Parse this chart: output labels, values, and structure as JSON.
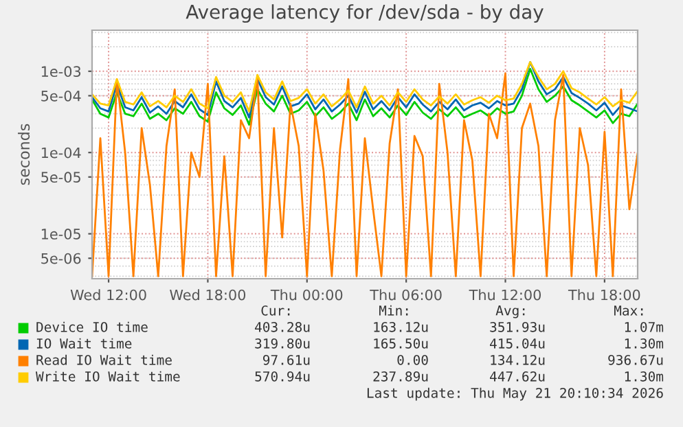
{
  "chart_data": {
    "type": "line",
    "title": "Average latency for /dev/sda - by day",
    "ylabel": "seconds",
    "x": [
      "2026-05-20T11:00",
      "2026-05-20T11:30",
      "2026-05-20T12:00",
      "2026-05-20T12:30",
      "2026-05-20T13:00",
      "2026-05-20T13:30",
      "2026-05-20T14:00",
      "2026-05-20T14:30",
      "2026-05-20T15:00",
      "2026-05-20T15:30",
      "2026-05-20T16:00",
      "2026-05-20T16:30",
      "2026-05-20T17:00",
      "2026-05-20T17:30",
      "2026-05-20T18:00",
      "2026-05-20T18:30",
      "2026-05-20T19:00",
      "2026-05-20T19:30",
      "2026-05-20T20:00",
      "2026-05-20T20:30",
      "2026-05-20T21:00",
      "2026-05-20T21:30",
      "2026-05-20T22:00",
      "2026-05-20T22:30",
      "2026-05-20T23:00",
      "2026-05-20T23:30",
      "2026-05-21T00:00",
      "2026-05-21T00:30",
      "2026-05-21T01:00",
      "2026-05-21T01:30",
      "2026-05-21T02:00",
      "2026-05-21T02:30",
      "2026-05-21T03:00",
      "2026-05-21T03:30",
      "2026-05-21T04:00",
      "2026-05-21T04:30",
      "2026-05-21T05:00",
      "2026-05-21T05:30",
      "2026-05-21T06:00",
      "2026-05-21T06:30",
      "2026-05-21T07:00",
      "2026-05-21T07:30",
      "2026-05-21T08:00",
      "2026-05-21T08:30",
      "2026-05-21T09:00",
      "2026-05-21T09:30",
      "2026-05-21T10:00",
      "2026-05-21T10:30",
      "2026-05-21T11:00",
      "2026-05-21T11:30",
      "2026-05-21T12:00",
      "2026-05-21T12:30",
      "2026-05-21T13:00",
      "2026-05-21T13:30",
      "2026-05-21T14:00",
      "2026-05-21T14:30",
      "2026-05-21T15:00",
      "2026-05-21T15:30",
      "2026-05-21T16:00",
      "2026-05-21T16:30",
      "2026-05-21T17:00",
      "2026-05-21T17:30",
      "2026-05-21T18:00",
      "2026-05-21T18:30",
      "2026-05-21T19:00",
      "2026-05-21T19:30",
      "2026-05-21T20:00"
    ],
    "series": [
      {
        "name": "Device IO time",
        "color": "#00cc00",
        "values": [
          0.00045,
          0.0003,
          0.00027,
          0.00055,
          0.0003,
          0.00028,
          0.0004,
          0.00026,
          0.0003,
          0.00025,
          0.00035,
          0.0003,
          0.00042,
          0.00028,
          0.00024,
          0.00055,
          0.00035,
          0.00029,
          0.00038,
          0.00022,
          0.0006,
          0.0004,
          0.00032,
          0.0005,
          0.0003,
          0.00033,
          0.00042,
          0.00028,
          0.00036,
          0.00026,
          0.00031,
          0.0004,
          0.00025,
          0.00045,
          0.00028,
          0.00035,
          0.00027,
          0.00038,
          0.00029,
          0.00042,
          0.00031,
          0.00026,
          0.00034,
          0.00028,
          0.00036,
          0.00027,
          0.0003,
          0.00033,
          0.00028,
          0.00035,
          0.0003,
          0.00032,
          0.0005,
          0.00107,
          0.0006,
          0.00042,
          0.0005,
          0.00065,
          0.00044,
          0.00038,
          0.00032,
          0.00027,
          0.00033,
          0.00023,
          0.0003,
          0.00028,
          0.0004
        ]
      },
      {
        "name": "IO Wait time",
        "color": "#0066b3",
        "values": [
          0.00048,
          0.00035,
          0.00032,
          0.0007,
          0.00036,
          0.00033,
          0.00048,
          0.00031,
          0.00037,
          0.0003,
          0.00043,
          0.00036,
          0.00052,
          0.00034,
          0.00029,
          0.00075,
          0.00043,
          0.00036,
          0.00047,
          0.00027,
          0.0008,
          0.00048,
          0.00039,
          0.00065,
          0.00037,
          0.0004,
          0.00052,
          0.00034,
          0.00045,
          0.00032,
          0.00039,
          0.0005,
          0.00031,
          0.00056,
          0.00034,
          0.00043,
          0.00033,
          0.00048,
          0.00036,
          0.00052,
          0.00039,
          0.00032,
          0.00042,
          0.00034,
          0.00045,
          0.00033,
          0.00038,
          0.00041,
          0.00035,
          0.00043,
          0.00038,
          0.0004,
          0.0006,
          0.0013,
          0.00075,
          0.00052,
          0.0006,
          0.00085,
          0.00054,
          0.00047,
          0.0004,
          0.00033,
          0.00041,
          0.00029,
          0.00038,
          0.00035,
          0.00032
        ]
      },
      {
        "name": "Read IO Wait time",
        "color": "#ff8000",
        "values": [
          3e-06,
          0.00015,
          3e-06,
          0.0008,
          0.0001,
          3e-06,
          0.0002,
          4e-05,
          3e-06,
          0.00012,
          0.0006,
          3e-06,
          0.0001,
          5e-05,
          0.0007,
          3e-06,
          9e-05,
          3e-06,
          0.00025,
          0.00015,
          0.00085,
          3e-06,
          0.0002,
          9e-06,
          0.0004,
          0.00012,
          3e-06,
          0.0003,
          6e-05,
          3e-06,
          0.00011,
          0.0008,
          3e-06,
          0.00015,
          2e-05,
          3e-06,
          0.00013,
          0.0006,
          3e-06,
          0.00016,
          9e-05,
          3e-06,
          0.0007,
          0.0001,
          3e-06,
          0.00025,
          8e-05,
          3e-06,
          0.0003,
          0.00015,
          0.00094,
          3e-06,
          0.0002,
          0.0004,
          0.00012,
          3e-06,
          0.00025,
          0.0009,
          3e-06,
          0.0002,
          7e-05,
          3e-06,
          0.00018,
          3e-06,
          0.0006,
          2e-05,
          9.8e-05
        ]
      },
      {
        "name": "Write IO Wait time",
        "color": "#ffcc00",
        "values": [
          0.00052,
          0.0004,
          0.00038,
          0.0008,
          0.00042,
          0.00039,
          0.00055,
          0.00037,
          0.00043,
          0.00036,
          0.0005,
          0.00042,
          0.0006,
          0.0004,
          0.00035,
          0.00085,
          0.0005,
          0.00042,
          0.00055,
          0.00032,
          0.0009,
          0.00055,
          0.00045,
          0.00075,
          0.00043,
          0.00047,
          0.0006,
          0.0004,
          0.00052,
          0.00037,
          0.00045,
          0.00058,
          0.00036,
          0.00065,
          0.0004,
          0.0005,
          0.00038,
          0.00055,
          0.00042,
          0.0006,
          0.00045,
          0.00038,
          0.00049,
          0.0004,
          0.00052,
          0.00039,
          0.00044,
          0.00048,
          0.00041,
          0.0005,
          0.00044,
          0.00046,
          0.0007,
          0.0013,
          0.00085,
          0.0006,
          0.0007,
          0.001,
          0.00062,
          0.00055,
          0.00046,
          0.00039,
          0.00048,
          0.00037,
          0.00044,
          0.00041,
          0.00057
        ]
      }
    ],
    "log": "y",
    "ylim": [
      2.8e-06,
      0.0032
    ],
    "yticks": [
      {
        "value": 5e-06,
        "label": "5e-06"
      },
      {
        "value": 1e-05,
        "label": "1e-05"
      },
      {
        "value": 5e-05,
        "label": "5e-05"
      },
      {
        "value": 0.0001,
        "label": "1e-04"
      },
      {
        "value": 0.0005,
        "label": "5e-04"
      },
      {
        "value": 0.001,
        "label": "1e-03"
      }
    ],
    "xlim": [
      "2026-05-20T11:00",
      "2026-05-21T20:00"
    ],
    "xticks": [
      {
        "value": "2026-05-20T12:00",
        "label": "Wed 12:00"
      },
      {
        "value": "2026-05-20T18:00",
        "label": "Wed 18:00"
      },
      {
        "value": "2026-05-21T00:00",
        "label": "Thu 00:00"
      },
      {
        "value": "2026-05-21T06:00",
        "label": "Thu 06:00"
      },
      {
        "value": "2026-05-21T12:00",
        "label": "Thu 12:00"
      },
      {
        "value": "2026-05-21T18:00",
        "label": "Thu 18:00"
      }
    ],
    "grid": true,
    "legend": "bottom",
    "marker": "none",
    "line_style": "solid",
    "annotations": [
      "Cur:",
      "Min:",
      "Avg:",
      "Max:",
      "403.28u",
      "163.12u",
      "351.93u",
      "1.07m",
      "319.80u",
      "165.50u",
      "415.04u",
      "1.30m",
      "97.61u",
      "0.00",
      "134.12u",
      "936.67u",
      "570.94u",
      "237.89u",
      "447.62u",
      "1.30m",
      "Last update: Thu May 21 20:10:34 2026"
    ]
  }
}
